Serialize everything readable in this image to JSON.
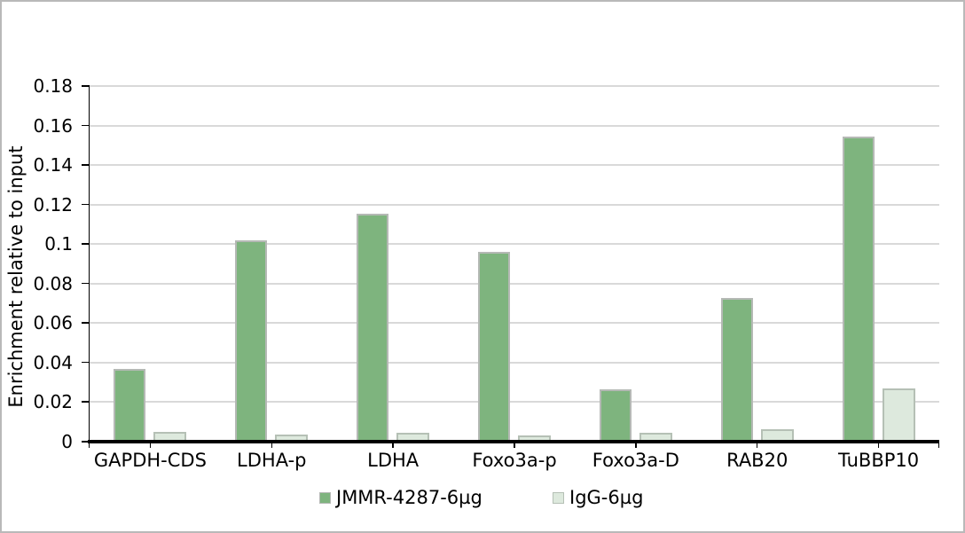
{
  "chart_data": {
    "type": "bar",
    "title": "",
    "ylabel": "Enrichment relative to input",
    "xlabel": "",
    "categories": [
      "GAPDH-CDS",
      "LDHA-p",
      "LDHA",
      "Foxo3a-p",
      "Foxo3a-D",
      "RAB20",
      "TuBBP10"
    ],
    "series": [
      {
        "name": "JMMR-4287-6µg",
        "values": [
          0.037,
          0.102,
          0.1155,
          0.096,
          0.0265,
          0.0725,
          0.1545
        ],
        "fill": "#7eb47e",
        "border": "#b5b9b5"
      },
      {
        "name": "IgG-6µg",
        "values": [
          0.005,
          0.0035,
          0.0045,
          0.003,
          0.0045,
          0.0065,
          0.027
        ],
        "fill": "#dde9dd",
        "border": "#b5c0b5"
      }
    ],
    "ylim": [
      0,
      0.18
    ],
    "ytick_step": 0.02,
    "ytick_labels": [
      "0",
      "0.02",
      "0.04",
      "0.06",
      "0.08",
      "0.1",
      "0.12",
      "0.14",
      "0.16",
      "0.18"
    ],
    "grid": true,
    "legend_position": "bottom",
    "colors": {
      "gridline": "#d9d9d9",
      "axis": "#000000",
      "frame_border": "#b9b9b9",
      "background": "#ffffff"
    }
  }
}
